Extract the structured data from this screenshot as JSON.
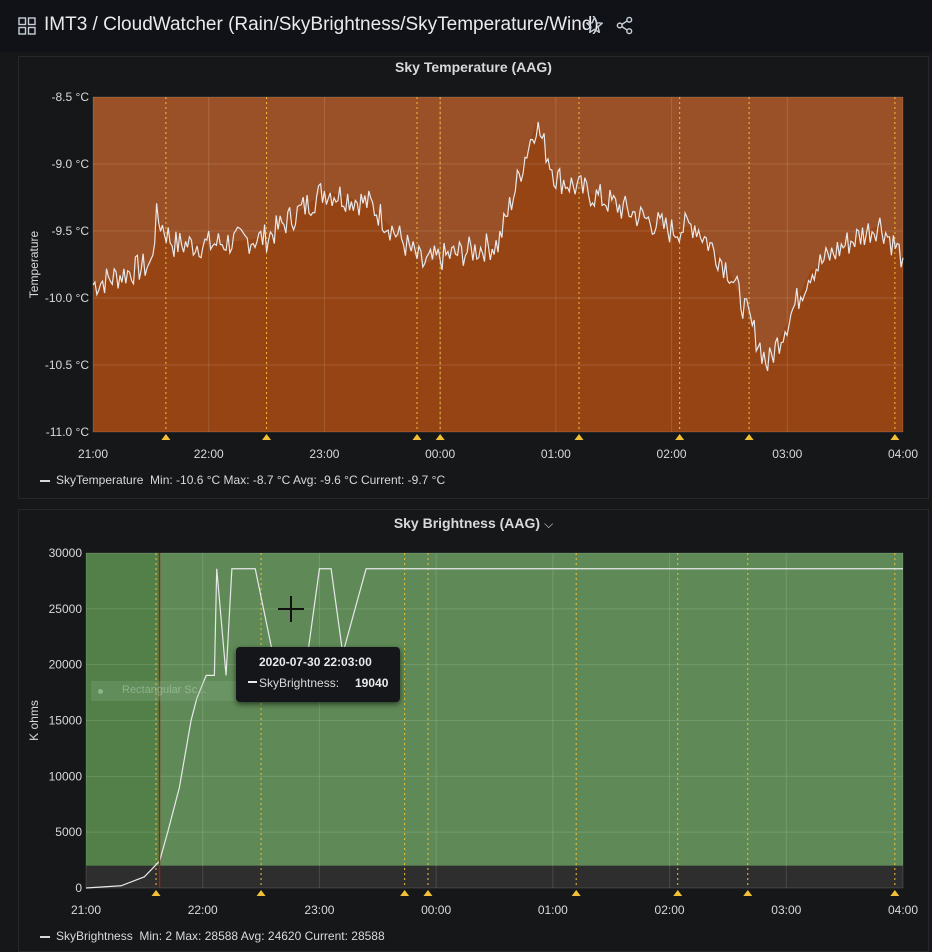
{
  "dashboard": {
    "title": "IMT3 / CloudWatcher (Rain/SkyBrightness/SkyTemperature/Wind)"
  },
  "colors": {
    "temp_fill": "#964414",
    "temp_fill_top": "#9b5127",
    "bright_fill": "#5f8a57",
    "bright_fill_left": "#528048",
    "bright_dark_band": "#2e2e2e",
    "annotation": "#f2c037",
    "marker": "#b0151f"
  },
  "panels": {
    "sky_temperature": {
      "title": "Sky Temperature (AAG)",
      "ylabel": "Temperature",
      "legend": {
        "series": "SkyTemperature",
        "stats": "Min: -10.6 °C  Max: -8.7 °C  Avg: -9.6 °C  Current: -9.7 °C"
      }
    },
    "sky_brightness": {
      "title": "Sky Brightness (AAG)",
      "chevron": "⌵",
      "ylabel": "K ohms",
      "legend": {
        "series": "SkyBrightness",
        "stats": "Min: 2  Max: 28588  Avg: 24620  Current: 28588"
      },
      "tooltip": {
        "time": "2020-07-30 22:03:00",
        "series": "SkyBrightness:",
        "value": "19040"
      },
      "ghost_label": "Rectangular Sc..."
    }
  },
  "chart_data": [
    {
      "type": "line",
      "title": "Sky Temperature (AAG)",
      "ylabel": "Temperature",
      "x_ticks": [
        "21:00",
        "22:00",
        "23:00",
        "00:00",
        "01:00",
        "02:00",
        "03:00",
        "04:00"
      ],
      "y_ticks": [
        "-8.5 °C",
        "-9.0 °C",
        "-9.5 °C",
        "-10.0 °C",
        "-10.5 °C",
        "-11.0 °C"
      ],
      "ylim": [
        -11.0,
        -8.5
      ],
      "xlim_hours": [
        21,
        28
      ],
      "series": [
        {
          "name": "SkyTemperature",
          "x": [
            21.0,
            21.5,
            21.55,
            21.7,
            22.0,
            22.5,
            23.0,
            23.4,
            23.85,
            24.0,
            24.5,
            24.75,
            24.83,
            25.0,
            25.5,
            26.0,
            26.2,
            26.5,
            26.83,
            27.2,
            27.5,
            27.8,
            28.0
          ],
          "y": [
            -9.9,
            -9.75,
            -9.4,
            -9.6,
            -9.6,
            -9.55,
            -9.2,
            -9.3,
            -9.75,
            -9.7,
            -9.6,
            -8.9,
            -8.7,
            -9.1,
            -9.3,
            -9.5,
            -9.45,
            -9.8,
            -10.5,
            -9.8,
            -9.6,
            -9.45,
            -9.7
          ]
        }
      ],
      "annotations_x": [
        21.63,
        22.5,
        23.8,
        24.0,
        25.2,
        26.07,
        26.67,
        27.93
      ],
      "grid": true,
      "legend_placement": "bottom-left"
    },
    {
      "type": "line",
      "title": "Sky Brightness (AAG)",
      "ylabel": "K ohms",
      "x_ticks": [
        "21:00",
        "22:00",
        "23:00",
        "00:00",
        "01:00",
        "02:00",
        "03:00",
        "04:00"
      ],
      "y_ticks": [
        "30000",
        "25000",
        "20000",
        "15000",
        "10000",
        "5000",
        "0"
      ],
      "ylim": [
        0,
        30000
      ],
      "xlim_hours": [
        21,
        28
      ],
      "series": [
        {
          "name": "SkyBrightness",
          "x": [
            21.0,
            21.3,
            21.5,
            21.63,
            21.7,
            21.8,
            21.9,
            21.95,
            22.03,
            22.1,
            22.12,
            22.2,
            22.25,
            22.45,
            22.6,
            22.9,
            23.0,
            23.1,
            23.2,
            23.4,
            23.5,
            24.0,
            25.0,
            26.0,
            27.0,
            28.0
          ],
          "y": [
            0,
            200,
            1000,
            2400,
            5000,
            9000,
            15000,
            17000,
            19040,
            19040,
            28588,
            19040,
            28588,
            28588,
            21000,
            21000,
            28588,
            28588,
            21000,
            28588,
            28588,
            28588,
            28588,
            28588,
            28588,
            28588
          ]
        }
      ],
      "thresholds": [
        2000
      ],
      "annotations_x": [
        21.6,
        22.5,
        23.73,
        23.93,
        25.2,
        26.07,
        26.67,
        27.93
      ],
      "time_marker_x": 21.63,
      "grid": true,
      "legend_placement": "bottom-left"
    }
  ]
}
